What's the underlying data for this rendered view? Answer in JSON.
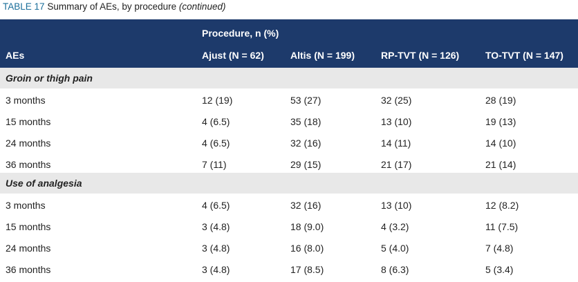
{
  "caption": {
    "label": "TABLE 17",
    "text": "Summary of AEs, by procedure",
    "note": "(continued)"
  },
  "table": {
    "spanner": "Procedure, n (%)",
    "columns": [
      "AEs",
      "Ajust (N = 62)",
      "Altis (N = 199)",
      "RP-TVT (N = 126)",
      "TO-TVT (N = 147)"
    ],
    "sections": [
      {
        "title": "Groin or thigh pain",
        "rows": [
          [
            "3 months",
            "12 (19)",
            "53 (27)",
            "32 (25)",
            "28 (19)"
          ],
          [
            "15 months",
            "4 (6.5)",
            "35 (18)",
            "13 (10)",
            "19 (13)"
          ],
          [
            "24 months",
            "4 (6.5)",
            "32 (16)",
            "14 (11)",
            "14 (10)"
          ],
          [
            "36 months",
            "7 (11)",
            "29 (15)",
            "21 (17)",
            "21 (14)"
          ]
        ]
      },
      {
        "title": "Use of analgesia",
        "rows": [
          [
            "3 months",
            "4 (6.5)",
            "32 (16)",
            "13 (10)",
            "12 (8.2)"
          ],
          [
            "15 months",
            "3 (4.8)",
            "18 (9.0)",
            "4 (3.2)",
            "11 (7.5)"
          ],
          [
            "24 months",
            "3 (4.8)",
            "16 (8.0)",
            "5 (4.0)",
            "7 (4.8)"
          ],
          [
            "36 months",
            "3 (4.8)",
            "17 (8.5)",
            "8 (6.3)",
            "5 (3.4)"
          ]
        ]
      }
    ]
  }
}
